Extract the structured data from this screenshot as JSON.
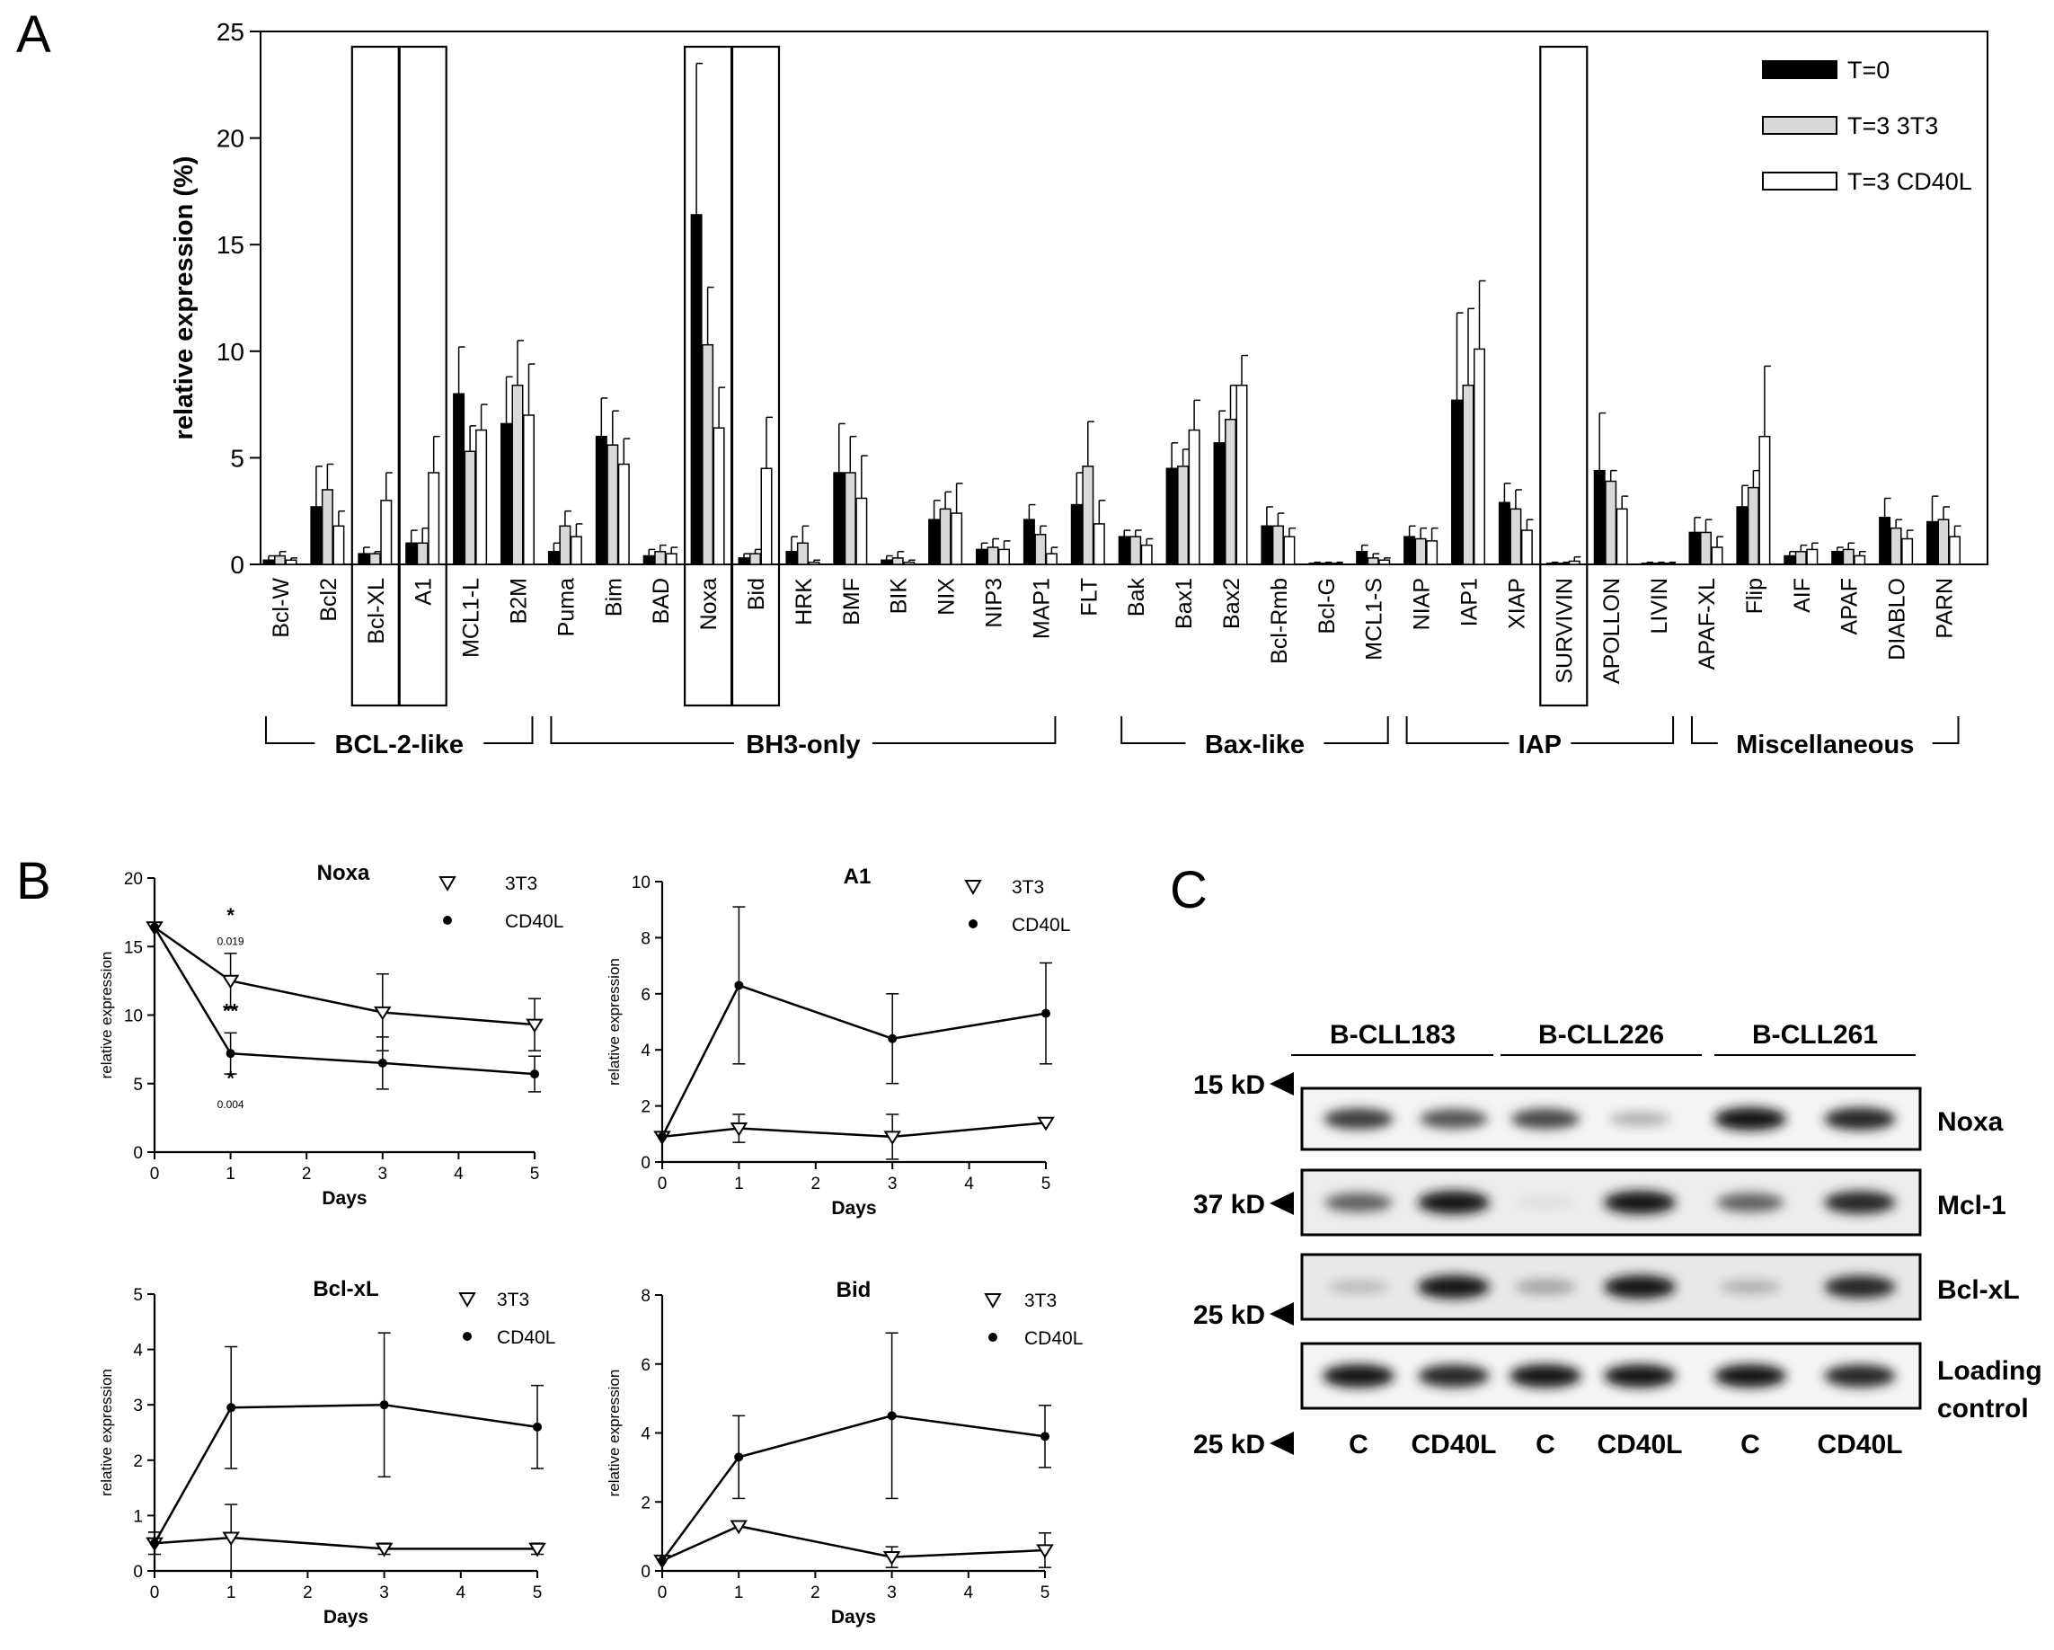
{
  "panels": {
    "A": "A",
    "B": "B",
    "C": "C"
  },
  "chart_data": [
    {
      "type": "bar",
      "panel": "A",
      "ylabel": "relative expression (%)",
      "ylim": [
        0,
        25
      ],
      "yticks": [
        0,
        5,
        10,
        15,
        20,
        25
      ],
      "categories": [
        "Bcl-W",
        "Bcl2",
        "Bcl-XL",
        "A1",
        "MCL1-L",
        "B2M",
        "Puma",
        "Bim",
        "BAD",
        "Noxa",
        "Bid",
        "HRK",
        "BMF",
        "BIK",
        "NIX",
        "NIP3",
        "MAP1",
        "FLT",
        "Bak",
        "Bax1",
        "Bax2",
        "Bcl-Rmb",
        "Bcl-G",
        "MCL1-S",
        "NIAP",
        "IAP1",
        "XIAP",
        "SURVIVIN",
        "APOLLON",
        "LIVIN",
        "APAF-XL",
        "Flip",
        "AIF",
        "APAF",
        "DIABLO",
        "PARN"
      ],
      "series": [
        {
          "name": "T=0",
          "color": "#000000",
          "values": [
            0.2,
            2.7,
            0.5,
            1.0,
            8.0,
            6.6,
            0.6,
            6.0,
            0.4,
            16.4,
            0.3,
            0.6,
            4.3,
            0.2,
            2.1,
            0.7,
            2.1,
            2.8,
            1.3,
            4.5,
            5.7,
            1.8,
            0.05,
            0.6,
            1.3,
            7.7,
            2.9,
            0.05,
            4.4,
            0.05,
            1.5,
            2.7,
            0.4,
            0.6,
            2.2,
            2.0
          ],
          "errors": [
            0.2,
            1.9,
            0.3,
            0.6,
            2.2,
            2.2,
            0.4,
            1.8,
            0.3,
            7.1,
            0.2,
            0.7,
            2.3,
            0.2,
            0.9,
            0.3,
            0.7,
            1.5,
            0.3,
            1.2,
            1.5,
            0.9,
            0.05,
            0.3,
            0.5,
            4.1,
            0.9,
            0.05,
            2.7,
            0.05,
            0.7,
            1.0,
            0.2,
            0.2,
            0.9,
            1.2
          ]
        },
        {
          "name": "T=3 3T3",
          "color": "#d9d9d9",
          "values": [
            0.4,
            3.5,
            0.5,
            1.0,
            5.3,
            8.4,
            1.8,
            5.6,
            0.6,
            10.3,
            0.5,
            1.0,
            4.3,
            0.3,
            2.6,
            0.8,
            1.4,
            4.6,
            1.3,
            4.6,
            6.8,
            1.8,
            0.05,
            0.3,
            1.2,
            8.4,
            2.6,
            0.05,
            3.9,
            0.05,
            1.5,
            3.6,
            0.6,
            0.7,
            1.7,
            2.1
          ],
          "errors": [
            0.2,
            1.2,
            0.1,
            0.7,
            1.2,
            2.1,
            0.7,
            1.6,
            0.3,
            2.7,
            0.2,
            0.8,
            1.7,
            0.3,
            0.8,
            0.4,
            0.4,
            2.1,
            0.3,
            0.8,
            1.6,
            0.6,
            0.05,
            0.2,
            0.5,
            3.6,
            0.9,
            0.05,
            0.5,
            0.05,
            0.6,
            0.8,
            0.3,
            0.3,
            0.4,
            0.6
          ]
        },
        {
          "name": "T=3 CD40L",
          "color": "#ffffff",
          "values": [
            0.2,
            1.8,
            3.0,
            4.3,
            6.3,
            7.0,
            1.3,
            4.7,
            0.5,
            6.4,
            4.5,
            0.1,
            3.1,
            0.1,
            2.4,
            0.7,
            0.5,
            1.9,
            0.9,
            6.3,
            8.4,
            1.3,
            0.05,
            0.2,
            1.1,
            10.1,
            1.6,
            0.15,
            2.6,
            0.05,
            0.8,
            6.0,
            0.7,
            0.4,
            1.2,
            1.3
          ],
          "errors": [
            0.1,
            0.7,
            1.3,
            1.7,
            1.2,
            2.4,
            0.6,
            1.2,
            0.3,
            1.9,
            2.4,
            0.1,
            2.0,
            0.1,
            1.4,
            0.4,
            0.3,
            1.1,
            0.3,
            1.4,
            1.4,
            0.4,
            0.05,
            0.1,
            0.6,
            3.2,
            0.5,
            0.2,
            0.6,
            0.05,
            0.5,
            3.3,
            0.3,
            0.2,
            0.4,
            0.5
          ]
        }
      ],
      "highlighted_categories": [
        "Bcl-XL",
        "A1",
        "Noxa",
        "Bid",
        "SURVIVIN"
      ],
      "groups": [
        {
          "label": "BCL-2-like",
          "from": "Bcl-W",
          "to": "B2M"
        },
        {
          "label": "BH3-only",
          "from": "Puma",
          "to": "MAP1"
        },
        {
          "label": "Bax-like",
          "from": "Bak",
          "to": "MCL1-S"
        },
        {
          "label": "IAP",
          "from": "NIAP",
          "to": "LIVIN"
        },
        {
          "label": "Miscellaneous",
          "from": "APAF-XL",
          "to": "PARN"
        }
      ],
      "legend_position": "top-right"
    },
    {
      "type": "line",
      "panel": "B",
      "title": "Noxa",
      "xlabel": "Days",
      "ylabel": "relative expression",
      "xlim": [
        0,
        5
      ],
      "ylim": [
        0,
        20
      ],
      "yticks": [
        0,
        5,
        10,
        15,
        20
      ],
      "xticks": [
        0,
        1,
        2,
        3,
        4,
        5
      ],
      "x": [
        0,
        1,
        3,
        5
      ],
      "series": [
        {
          "name": "3T3",
          "marker": "triangle-down",
          "values": [
            16.4,
            12.5,
            10.2,
            9.3
          ],
          "errors": [
            0,
            2.0,
            2.8,
            1.9
          ]
        },
        {
          "name": "CD40L",
          "marker": "circle",
          "values": [
            16.4,
            7.2,
            6.5,
            5.7
          ],
          "errors": [
            0,
            1.5,
            1.9,
            1.3
          ]
        }
      ],
      "annotations": [
        {
          "text": "*",
          "x": 1,
          "y": 16.8
        },
        {
          "text": "0.019",
          "x": 1,
          "y": 15.1
        },
        {
          "text": "**",
          "x": 1,
          "y": 9.8
        },
        {
          "text": "*",
          "x": 1,
          "y": 4.9
        },
        {
          "text": "0.004",
          "x": 1,
          "y": 3.2
        }
      ],
      "legend_position": "top-right"
    },
    {
      "type": "line",
      "panel": "B",
      "title": "A1",
      "xlabel": "Days",
      "ylabel": "relative expression",
      "xlim": [
        0,
        5
      ],
      "ylim": [
        0,
        10
      ],
      "yticks": [
        0,
        2,
        4,
        6,
        8,
        10
      ],
      "xticks": [
        0,
        1,
        2,
        3,
        4,
        5
      ],
      "x": [
        0,
        1,
        3,
        5
      ],
      "series": [
        {
          "name": "3T3",
          "marker": "triangle-down",
          "values": [
            0.9,
            1.2,
            0.9,
            1.4
          ],
          "errors": [
            0,
            0.5,
            0.8,
            0
          ]
        },
        {
          "name": "CD40L",
          "marker": "circle",
          "values": [
            0.9,
            6.3,
            4.4,
            5.3
          ],
          "errors": [
            0,
            2.8,
            1.6,
            1.8
          ]
        }
      ],
      "legend_position": "top-right"
    },
    {
      "type": "line",
      "panel": "B",
      "title": "Bcl-xL",
      "xlabel": "Days",
      "ylabel": "relative expression",
      "xlim": [
        0,
        5
      ],
      "ylim": [
        0,
        5
      ],
      "yticks": [
        0,
        1,
        2,
        3,
        4,
        5
      ],
      "xticks": [
        0,
        1,
        2,
        3,
        4,
        5
      ],
      "x": [
        0,
        1,
        3,
        5
      ],
      "series": [
        {
          "name": "3T3",
          "marker": "triangle-down",
          "values": [
            0.5,
            0.6,
            0.4,
            0.4
          ],
          "errors": [
            0.2,
            0.6,
            0.1,
            0.1
          ]
        },
        {
          "name": "CD40L",
          "marker": "circle",
          "values": [
            0.5,
            2.95,
            3.0,
            2.6
          ],
          "errors": [
            0.2,
            1.1,
            1.3,
            0.75
          ]
        }
      ],
      "legend_position": "top-right"
    },
    {
      "type": "line",
      "panel": "B",
      "title": "Bid",
      "xlabel": "Days",
      "ylabel": "relative expression",
      "xlim": [
        0,
        5
      ],
      "ylim": [
        0,
        8
      ],
      "yticks": [
        0,
        2,
        4,
        6,
        8
      ],
      "xticks": [
        0,
        1,
        2,
        3,
        4,
        5
      ],
      "x": [
        0,
        1,
        3,
        5
      ],
      "series": [
        {
          "name": "3T3",
          "marker": "triangle-down",
          "values": [
            0.3,
            1.3,
            0.4,
            0.6
          ],
          "errors": [
            0,
            0,
            0.3,
            0.5
          ]
        },
        {
          "name": "CD40L",
          "marker": "circle",
          "values": [
            0.3,
            3.3,
            4.5,
            3.9
          ],
          "errors": [
            0,
            1.2,
            2.4,
            0.9
          ]
        }
      ],
      "legend_position": "top-right"
    }
  ],
  "western_blot": {
    "panel": "C",
    "samples": [
      "B-CLL183",
      "B-CLL226",
      "B-CLL261"
    ],
    "lanes": [
      "C",
      "CD40L",
      "C",
      "CD40L",
      "C",
      "CD40L"
    ],
    "blots": [
      {
        "label": "Noxa",
        "marker": "15 kD",
        "intensities": [
          0.85,
          0.75,
          0.8,
          0.35,
          1.0,
          0.95
        ]
      },
      {
        "label": "Mcl-1",
        "marker": "37 kD",
        "intensities": [
          0.7,
          1.0,
          0.15,
          1.0,
          0.7,
          0.95
        ]
      },
      {
        "label": "Bcl-xL",
        "marker": "25 kD",
        "intensities": [
          0.3,
          1.0,
          0.4,
          1.0,
          0.35,
          0.95
        ]
      },
      {
        "label": "Loading control",
        "label_lines": [
          "Loading",
          "control"
        ],
        "marker": "25 kD",
        "intensities": [
          1.0,
          0.95,
          1.0,
          1.0,
          1.0,
          0.95
        ]
      }
    ]
  }
}
